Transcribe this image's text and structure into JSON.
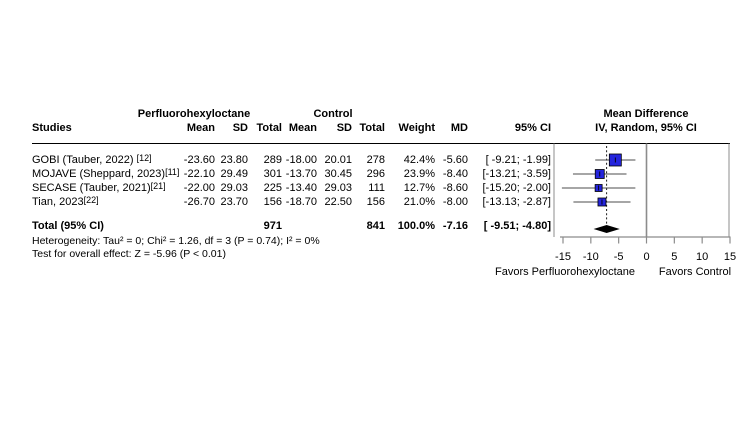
{
  "table": {
    "group_header_treatment": "Perfluorohexyloctane",
    "group_header_control": "Control",
    "effect_header_line1": "Mean Difference",
    "effect_header_line2": "IV, Random, 95% CI",
    "columns": {
      "studies": "Studies",
      "mean1": "Mean",
      "sd1": "SD",
      "total1": "Total",
      "mean2": "Mean",
      "sd2": "SD",
      "total2": "Total",
      "weight": "Weight",
      "md": "MD",
      "ci": "95% CI"
    },
    "rows": [
      {
        "name": "GOBI (Tauber, 2022) ",
        "ref": "[12]",
        "mean1": "-23.60",
        "sd1": "23.80",
        "total1": "289",
        "mean2": "-18.00",
        "sd2": "20.01",
        "total2": "278",
        "weight": "42.4%",
        "md": "-5.60",
        "ci": "[ -9.21; -1.99]"
      },
      {
        "name": "MOJAVE (Sheppard, 2023)",
        "ref": "[11]",
        "mean1": "-22.10",
        "sd1": "29.49",
        "total1": "301",
        "mean2": "-13.70",
        "sd2": "30.45",
        "total2": "296",
        "weight": "23.9%",
        "md": "-8.40",
        "ci": "[-13.21; -3.59]"
      },
      {
        "name": "SECASE (Tauber, 2021)",
        "ref": "[21]",
        "mean1": "-22.00",
        "sd1": "29.03",
        "total1": "225",
        "mean2": "-13.40",
        "sd2": "29.03",
        "total2": "111",
        "weight": "12.7%",
        "md": "-8.60",
        "ci": "[-15.20; -2.00]"
      },
      {
        "name": "Tian, 2023",
        "ref": "[22]",
        "mean1": "-26.70",
        "sd1": "23.70",
        "total1": "156",
        "mean2": "-18.70",
        "sd2": "22.50",
        "total2": "156",
        "weight": "21.0%",
        "md": "-8.00",
        "ci": "[-13.13; -2.87]"
      }
    ],
    "total_row": {
      "label": "Total (95% CI)",
      "total1": "971",
      "total2": "841",
      "weight": "100.0%",
      "md": "-7.16",
      "ci": "[ -9.51; -4.80]"
    },
    "heterogeneity": "Heterogeneity: Tau² = 0; Chi² = 1.26, df = 3 (P = 0.74); I² = 0%",
    "overall_effect": "Test for overall effect: Z = -5.96 (P < 0.01)"
  },
  "chart_data": {
    "type": "forest",
    "title": "Mean Difference",
    "model": "IV, Random, 95% CI",
    "xlim": [
      -15,
      15
    ],
    "axis_ticks": [
      -15,
      -10,
      -5,
      0,
      5,
      10,
      15
    ],
    "zero_line": 0,
    "pooled_estimate": -7.16,
    "studies": [
      {
        "name": "GOBI (Tauber, 2022) [12]",
        "md": -5.6,
        "ci_low": -9.21,
        "ci_high": -1.99,
        "weight": 42.4
      },
      {
        "name": "MOJAVE (Sheppard, 2023)[11]",
        "md": -8.4,
        "ci_low": -13.21,
        "ci_high": -3.59,
        "weight": 23.9
      },
      {
        "name": "SECASE (Tauber, 2021)[21]",
        "md": -8.6,
        "ci_low": -15.2,
        "ci_high": -2.0,
        "weight": 12.7
      },
      {
        "name": "Tian, 2023[22]",
        "md": -8.0,
        "ci_low": -13.13,
        "ci_high": -2.87,
        "weight": 21.0
      }
    ],
    "total": {
      "md": -7.16,
      "ci_low": -9.51,
      "ci_high": -4.8,
      "weight": 100.0
    },
    "favors_left": "Favors Perfluorohexyloctane",
    "favors_right": "Favors Control",
    "square_color": "#2424dd",
    "diamond_color": "#000000",
    "axis_color": "#8c8c8c"
  }
}
